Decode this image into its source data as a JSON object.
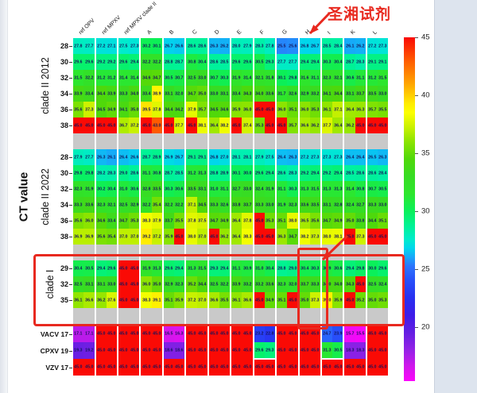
{
  "annotations": {
    "reagent_label": "圣湘试剂",
    "annotation_color": "#e8291f"
  },
  "chart_data": {
    "type": "heatmap",
    "y_axis_title": "CT value",
    "column_groups": [
      "ref OPV",
      "ref MPXV",
      "ref MPXV clade II",
      "A",
      "B",
      "C",
      "D",
      "E",
      "F",
      "G",
      "H",
      "I",
      "K",
      "L"
    ],
    "values_per_group": 2,
    "colorbar": {
      "vmax": 45,
      "vmin": 15.3,
      "ticks": [
        45,
        40,
        35,
        30,
        25,
        20
      ],
      "position": "right"
    },
    "highlighted_column_group": "H",
    "control_highlight_groups": [
      "F",
      "I"
    ],
    "blocks": [
      {
        "label": "clade II 2012",
        "row_ticks": [
          "28",
          "30",
          "32",
          "34",
          "36",
          "38"
        ],
        "rows": [
          [
            27.8,
            27.7,
            27.2,
            27.1,
            27.5,
            27.3,
            30.2,
            30.1,
            26.7,
            26.6,
            28.6,
            28.6,
            26.3,
            26.2,
            28.0,
            27.9,
            28.3,
            27.8,
            25.5,
            25.6,
            26.8,
            26.7,
            28.5,
            28.4,
            26.1,
            26.2,
            27.2,
            27.3
          ],
          [
            29.6,
            29.6,
            29.2,
            29.2,
            29.6,
            29.4,
            32.2,
            32.2,
            28.8,
            28.7,
            30.8,
            30.4,
            28.6,
            28.5,
            29.6,
            29.6,
            30.5,
            29.3,
            27.7,
            27.7,
            29.4,
            29.4,
            30.3,
            30.4,
            28.7,
            28.3,
            29.1,
            29.1
          ],
          [
            31.5,
            32.2,
            31.2,
            31.2,
            31.4,
            31.4,
            34.6,
            34.7,
            30.5,
            30.7,
            32.5,
            33.0,
            30.7,
            30.3,
            31.9,
            31.4,
            32.1,
            31.8,
            30.1,
            29.8,
            31.6,
            31.1,
            32.3,
            32.1,
            30.6,
            31.1,
            31.2,
            31.5
          ],
          [
            33.9,
            33.4,
            34.4,
            33.9,
            33.3,
            34.0,
            33.4,
            38.9,
            33.1,
            32.0,
            34.7,
            35.0,
            33.0,
            33.1,
            33.4,
            34.3,
            34.0,
            33.6,
            31.7,
            32.6,
            32.9,
            33.2,
            34.1,
            34.4,
            33.1,
            33.7,
            33.5,
            33.0
          ],
          [
            35.6,
            37.3,
            34.5,
            34.9,
            34.1,
            35.0,
            39.5,
            37.8,
            34.4,
            34.2,
            37.9,
            35.7,
            34.5,
            34.6,
            35.9,
            36.0,
            45.0,
            45.0,
            36.0,
            35.1,
            36.0,
            35.3,
            36.1,
            37.1,
            36.4,
            36.3,
            35.7,
            35.5
          ],
          [
            45.0,
            45.0,
            45.0,
            45.0,
            36.7,
            37.2,
            45.0,
            43.0,
            45.0,
            37.7,
            45.0,
            38.1,
            36.4,
            38.2,
            45.0,
            37.4,
            35.3,
            45.0,
            45.0,
            35.7,
            36.6,
            36.2,
            37.7,
            36.4,
            36.2,
            45.0,
            45.0,
            45.0
          ]
        ]
      },
      {
        "label": "clade II 2022",
        "row_ticks": [
          "28",
          "30",
          "32",
          "34",
          "36",
          "38"
        ],
        "rows": [
          [
            27.9,
            27.7,
            26.3,
            26.1,
            26.4,
            26.6,
            28.7,
            28.9,
            26.9,
            26.7,
            29.1,
            29.1,
            26.8,
            27.0,
            28.1,
            28.1,
            27.9,
            27.5,
            26.4,
            26.3,
            27.2,
            27.3,
            27.3,
            27.3,
            26.4,
            26.4,
            26.5,
            26.3
          ],
          [
            29.8,
            29.8,
            28.2,
            28.3,
            29.0,
            28.6,
            31.1,
            30.8,
            28.7,
            28.5,
            31.2,
            31.3,
            28.8,
            28.9,
            30.1,
            30.0,
            29.6,
            29.4,
            28.6,
            28.3,
            29.2,
            29.4,
            29.2,
            29.4,
            28.5,
            28.6,
            28.6,
            28.4
          ],
          [
            32.3,
            31.9,
            30.2,
            30.4,
            31.0,
            30.6,
            32.8,
            33.5,
            30.3,
            30.6,
            33.5,
            33.1,
            31.0,
            31.1,
            32.7,
            33.0,
            32.4,
            31.9,
            31.1,
            30.3,
            31.3,
            31.5,
            31.3,
            31.3,
            31.4,
            30.8,
            30.7,
            30.5
          ],
          [
            33.3,
            33.6,
            32.3,
            32.1,
            32.5,
            32.9,
            32.2,
            35.4,
            32.2,
            32.2,
            37.1,
            34.5,
            33.3,
            32.6,
            33.8,
            33.7,
            33.3,
            33.0,
            31.9,
            32.3,
            33.6,
            33.5,
            33.1,
            32.8,
            32.4,
            32.7,
            33.3,
            33.0
          ],
          [
            35.6,
            36.0,
            34.6,
            33.4,
            34.7,
            35.3,
            38.3,
            37.9,
            33.7,
            35.5,
            37.8,
            37.5,
            34.7,
            34.9,
            36.4,
            37.8,
            45.0,
            35.3,
            35.1,
            38.0,
            36.5,
            35.6,
            34.7,
            34.9,
            35.0,
            33.8,
            34.4,
            35.1
          ],
          [
            36.9,
            36.9,
            35.6,
            35.4,
            37.0,
            37.0,
            39.2,
            37.2,
            35.9,
            45.0,
            38.0,
            37.0,
            45.0,
            36.2,
            36.4,
            38.3,
            45.0,
            45.0,
            36.3,
            34.7,
            38.2,
            37.3,
            38.0,
            38.1,
            45.0,
            37.3,
            45.0,
            45.0
          ]
        ]
      },
      {
        "label": "clade I",
        "row_ticks": [
          "29",
          "32",
          "35"
        ],
        "rows": [
          [
            30.4,
            30.5,
            29.4,
            29.6,
            45.0,
            45.0,
            31.9,
            31.3,
            29.6,
            29.4,
            31.3,
            31.5,
            29.3,
            29.4,
            31.1,
            30.9,
            31.0,
            30.4,
            28.8,
            29.0,
            30.4,
            30.3,
            30.9,
            30.6,
            29.4,
            29.8,
            30.0,
            29.6
          ],
          [
            32.5,
            33.1,
            33.1,
            33.0,
            45.0,
            45.0,
            36.0,
            35.0,
            32.9,
            32.3,
            35.2,
            34.4,
            32.5,
            32.2,
            33.9,
            33.2,
            33.2,
            33.6,
            32.3,
            32.0,
            33.7,
            33.3,
            34.0,
            34.0,
            34.3,
            45.0,
            32.5,
            32.4
          ],
          [
            36.1,
            36.6,
            36.2,
            37.6,
            45.0,
            45.0,
            38.3,
            39.1,
            35.1,
            35.9,
            37.2,
            37.0,
            36.6,
            35.5,
            36.1,
            36.6,
            45.0,
            34.9,
            35.1,
            45.0,
            35.0,
            37.3,
            39.0,
            35.9,
            45.0,
            35.2,
            35.0,
            35.3
          ]
        ]
      },
      {
        "label": "",
        "row_ticks": [
          "VACV 17",
          "CPXV 19",
          "VZV 17"
        ],
        "rows": [
          [
            17.1,
            17.1,
            45.0,
            45.0,
            45.0,
            45.0,
            45.0,
            45.0,
            16.5,
            16.3,
            45.0,
            45.0,
            45.0,
            45.0,
            45.0,
            45.0,
            23.2,
            22.8,
            45.0,
            45.0,
            45.0,
            45.0,
            24.7,
            23.9,
            15.7,
            15.5,
            45.0,
            45.0
          ],
          [
            19.3,
            19.2,
            45.0,
            45.0,
            45.0,
            45.0,
            45.0,
            45.0,
            18.6,
            18.6,
            45.0,
            45.0,
            45.0,
            45.0,
            45.0,
            45.0,
            29.6,
            29.3,
            45.0,
            45.0,
            45.0,
            45.0,
            31.3,
            30.5,
            18.3,
            18.3,
            45.0,
            45.0
          ],
          [
            45.0,
            45.0,
            45.0,
            45.0,
            45.0,
            45.0,
            45.0,
            45.0,
            45.0,
            45.0,
            45.0,
            45.0,
            45.0,
            45.0,
            45.0,
            45.0,
            45.0,
            45.0,
            45.0,
            45.0,
            45.0,
            45.0,
            45.0,
            45.0,
            45.0,
            45.0,
            45.0,
            45.0
          ]
        ]
      }
    ]
  }
}
